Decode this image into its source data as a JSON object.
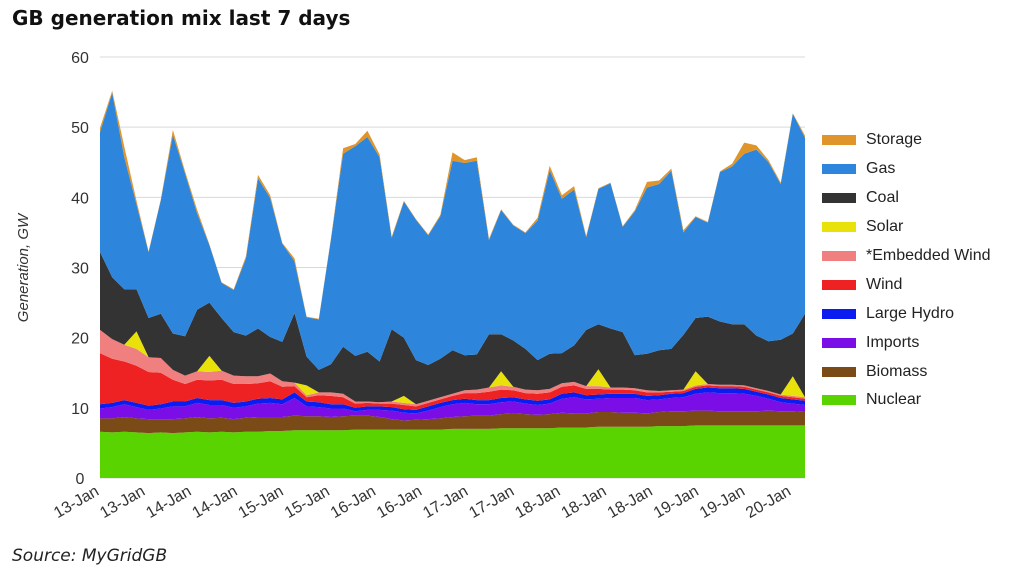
{
  "title": "GB generation mix last 7 days",
  "source": "Source: MyGridGB",
  "chart_data": {
    "type": "area",
    "stacked": true,
    "ylabel": "Generation, GW",
    "ylim": [
      0,
      60
    ],
    "yticks": [
      0,
      10,
      20,
      30,
      40,
      50,
      60
    ],
    "grid": true,
    "legend_position": "right",
    "x_tick_labels": [
      "13-Jan",
      "13-Jan",
      "14-Jan",
      "14-Jan",
      "15-Jan",
      "15-Jan",
      "16-Jan",
      "16-Jan",
      "17-Jan",
      "17-Jan",
      "18-Jan",
      "18-Jan",
      "18-Jan",
      "19-Jan",
      "19-Jan",
      "20-Jan"
    ],
    "x_range_days": [
      13.0,
      20.25
    ],
    "x": [
      13.0,
      13.125,
      13.25,
      13.375,
      13.5,
      13.625,
      13.75,
      13.875,
      14.0,
      14.125,
      14.25,
      14.375,
      14.5,
      14.625,
      14.75,
      14.875,
      15.0,
      15.125,
      15.25,
      15.375,
      15.5,
      15.625,
      15.75,
      15.875,
      16.0,
      16.125,
      16.25,
      16.375,
      16.5,
      16.625,
      16.75,
      16.875,
      17.0,
      17.125,
      17.25,
      17.375,
      17.5,
      17.625,
      17.75,
      17.875,
      18.0,
      18.125,
      18.25,
      18.375,
      18.5,
      18.625,
      18.75,
      18.875,
      19.0,
      19.125,
      19.25,
      19.375,
      19.5,
      19.625,
      19.75,
      19.875,
      20.0,
      20.125,
      20.25
    ],
    "series": [
      {
        "name": "Nuclear",
        "color": "#5ad400",
        "values": [
          6.6,
          6.5,
          6.6,
          6.5,
          6.4,
          6.5,
          6.4,
          6.5,
          6.6,
          6.5,
          6.6,
          6.5,
          6.6,
          6.6,
          6.7,
          6.7,
          6.8,
          6.8,
          6.8,
          6.8,
          6.8,
          6.9,
          6.9,
          6.9,
          6.9,
          6.9,
          6.9,
          6.9,
          6.9,
          7.0,
          7.0,
          7.0,
          7.0,
          7.1,
          7.1,
          7.1,
          7.1,
          7.1,
          7.2,
          7.2,
          7.2,
          7.3,
          7.3,
          7.3,
          7.3,
          7.3,
          7.4,
          7.4,
          7.4,
          7.5,
          7.5,
          7.5,
          7.5,
          7.5,
          7.5,
          7.5,
          7.5,
          7.5,
          7.5
        ]
      },
      {
        "name": "Biomass",
        "color": "#7a4b17",
        "values": [
          1.9,
          2.0,
          2.1,
          2.0,
          2.0,
          1.9,
          2.0,
          2.0,
          2.1,
          2.0,
          2.0,
          1.9,
          2.0,
          2.1,
          2.0,
          2.0,
          2.1,
          2.0,
          2.0,
          1.9,
          2.0,
          2.0,
          2.0,
          1.8,
          1.5,
          1.3,
          1.4,
          1.5,
          1.6,
          1.7,
          1.8,
          1.9,
          1.9,
          2.0,
          2.1,
          2.0,
          1.9,
          2.0,
          2.1,
          2.0,
          2.0,
          2.1,
          2.1,
          2.0,
          2.0,
          1.9,
          2.0,
          2.1,
          2.1,
          2.1,
          2.1,
          2.0,
          2.0,
          2.0,
          2.0,
          2.1,
          2.0,
          2.0,
          1.9
        ]
      },
      {
        "name": "Imports",
        "color": "#7b0ee6",
        "values": [
          1.4,
          1.6,
          1.8,
          1.6,
          1.3,
          1.5,
          1.8,
          1.7,
          2.0,
          1.9,
          1.8,
          1.6,
          1.6,
          1.9,
          2.0,
          1.8,
          2.5,
          1.4,
          1.3,
          1.2,
          1.1,
          0.6,
          0.8,
          1.0,
          1.2,
          1.1,
          0.9,
          1.2,
          1.6,
          1.8,
          1.9,
          1.6,
          1.6,
          1.7,
          1.7,
          1.5,
          1.4,
          1.5,
          2.0,
          2.3,
          2.0,
          1.9,
          2.0,
          2.1,
          2.1,
          1.9,
          1.8,
          1.9,
          2.0,
          2.4,
          2.6,
          2.6,
          2.6,
          2.5,
          2.2,
          1.7,
          1.3,
          1.1,
          1.0
        ]
      },
      {
        "name": "Large Hydro",
        "color": "#0a1cf0",
        "values": [
          0.6,
          0.6,
          0.6,
          0.6,
          0.6,
          0.6,
          0.7,
          0.7,
          0.7,
          0.7,
          0.7,
          0.7,
          0.7,
          0.7,
          0.7,
          0.7,
          0.8,
          0.7,
          0.7,
          0.6,
          0.6,
          0.5,
          0.5,
          0.5,
          0.5,
          0.5,
          0.5,
          0.6,
          0.6,
          0.6,
          0.6,
          0.6,
          0.6,
          0.6,
          0.6,
          0.6,
          0.6,
          0.6,
          0.7,
          0.7,
          0.6,
          0.6,
          0.6,
          0.6,
          0.6,
          0.6,
          0.6,
          0.6,
          0.6,
          0.7,
          0.7,
          0.7,
          0.7,
          0.7,
          0.6,
          0.6,
          0.6,
          0.6,
          0.6
        ]
      },
      {
        "name": "Wind",
        "color": "#ee2222",
        "values": [
          7.3,
          6.3,
          5.5,
          5.3,
          4.8,
          4.5,
          3.1,
          2.5,
          2.6,
          2.8,
          2.9,
          2.7,
          2.5,
          2.2,
          2.4,
          1.8,
          0.9,
          0.6,
          1.0,
          1.2,
          1.0,
          0.6,
          0.5,
          0.4,
          0.5,
          0.6,
          0.5,
          0.5,
          0.5,
          0.6,
          0.8,
          1.0,
          1.2,
          1.2,
          1.0,
          0.9,
          1.0,
          1.0,
          1.0,
          1.0,
          0.9,
          0.8,
          0.6,
          0.6,
          0.5,
          0.5,
          0.4,
          0.3,
          0.3,
          0.3,
          0.3,
          0.3,
          0.3,
          0.3,
          0.3,
          0.3,
          0.3,
          0.3,
          0.3
        ]
      },
      {
        "name": "*Embedded Wind",
        "color": "#f08080",
        "values": [
          3.3,
          2.8,
          2.4,
          2.4,
          2.1,
          2.1,
          1.4,
          1.2,
          1.2,
          1.2,
          1.3,
          1.2,
          1.1,
          1.0,
          1.1,
          0.8,
          0.5,
          0.3,
          0.4,
          0.5,
          0.5,
          0.3,
          0.2,
          0.2,
          0.3,
          0.3,
          0.3,
          0.3,
          0.3,
          0.3,
          0.4,
          0.5,
          0.6,
          0.6,
          0.5,
          0.5,
          0.5,
          0.5,
          0.5,
          0.5,
          0.4,
          0.4,
          0.3,
          0.3,
          0.3,
          0.3,
          0.2,
          0.2,
          0.2,
          0.2,
          0.2,
          0.2,
          0.2,
          0.2,
          0.2,
          0.2,
          0.2,
          0.2,
          0.2
        ]
      },
      {
        "name": "Solar",
        "color": "#e8e20a",
        "values": [
          0,
          0,
          0,
          2.5,
          0,
          0,
          0,
          0,
          0,
          2.3,
          0,
          0,
          0,
          0,
          0,
          0,
          0,
          1.4,
          0,
          0,
          0,
          0,
          0,
          0,
          0,
          1.0,
          0,
          0,
          0,
          0,
          0,
          0,
          0,
          2.0,
          0,
          0,
          0,
          0,
          0,
          0,
          0,
          2.4,
          0,
          0,
          0,
          0,
          0,
          0,
          0,
          2.0,
          0,
          0,
          0,
          0,
          0,
          0,
          0,
          2.8,
          0
        ]
      },
      {
        "name": "Coal",
        "color": "#333333",
        "values": [
          11.1,
          8.8,
          7.9,
          6.0,
          5.6,
          6.3,
          5.2,
          5.6,
          8.8,
          7.6,
          7.5,
          6.2,
          5.8,
          6.8,
          5.2,
          5.6,
          9.9,
          4.1,
          3.2,
          4.0,
          6.7,
          6.5,
          7.1,
          5.8,
          10.3,
          8.3,
          6.3,
          5.1,
          5.5,
          6.2,
          5.0,
          5.0,
          7.6,
          5.3,
          6.6,
          5.8,
          4.3,
          5.0,
          4.3,
          5.2,
          8.0,
          6.4,
          8.4,
          7.9,
          4.7,
          5.2,
          5.8,
          5.9,
          7.8,
          7.6,
          9.6,
          9.0,
          8.6,
          8.7,
          7.5,
          7.1,
          7.8,
          6.1,
          11.9
        ]
      },
      {
        "name": "Gas",
        "color": "#2e86dc",
        "values": [
          17.1,
          26.3,
          18.8,
          12.1,
          9.4,
          16.2,
          28.3,
          23.2,
          13.7,
          8.2,
          5.0,
          6.0,
          11.0,
          21.4,
          19.8,
          14.0,
          7.4,
          5.6,
          7.2,
          17.8,
          27.5,
          29.9,
          30.6,
          29.1,
          13.0,
          19.4,
          20.0,
          18.5,
          20.3,
          27.0,
          27.4,
          27.6,
          13.4,
          17.7,
          16.4,
          16.5,
          19.9,
          26.2,
          22.0,
          22.2,
          13.2,
          19.3,
          20.7,
          15.0,
          20.5,
          23.7,
          23.7,
          25.4,
          14.6,
          14.4,
          13.4,
          21.3,
          22.5,
          24.3,
          26.5,
          25.5,
          22.2,
          31.3,
          25.1
        ]
      },
      {
        "name": "Storage",
        "color": "#e0952a",
        "values": [
          0.6,
          0.3,
          1.5,
          0.5,
          0.1,
          0.1,
          0.7,
          0.3,
          0.5,
          0.1,
          0.1,
          0.1,
          0.3,
          0.5,
          0.4,
          0.1,
          0.4,
          0.1,
          0.1,
          0.1,
          0.8,
          0.3,
          0.9,
          0.4,
          0.2,
          0.1,
          0.1,
          0.1,
          0.2,
          1.2,
          0.4,
          0.5,
          0.2,
          0.1,
          0.1,
          0.1,
          0.4,
          0.6,
          0.5,
          0.5,
          0.2,
          0.1,
          0.1,
          0.1,
          0.2,
          0.8,
          0.5,
          0.3,
          0.3,
          0.1,
          0.1,
          0.1,
          0.4,
          1.6,
          0.6,
          0.3,
          0.2,
          0.1,
          0.3
        ]
      }
    ]
  }
}
